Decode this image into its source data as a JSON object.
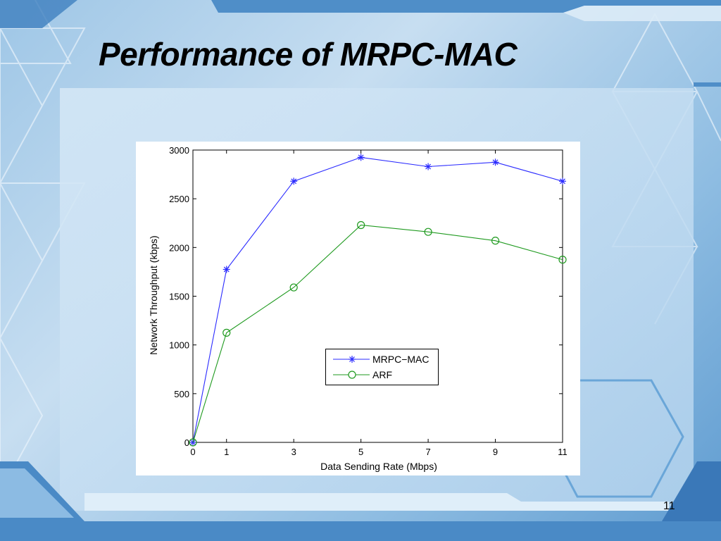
{
  "slide": {
    "title": "Performance of MRPC-MAC",
    "page_number": "11"
  },
  "colors": {
    "mrpc_mac": "#2b2bff",
    "arf": "#1f9a1f",
    "background_light": "#c7def1",
    "background_dark": "#5e9bd0"
  },
  "chart_data": {
    "type": "line",
    "xlabel": "Data Sending Rate (Mbps)",
    "ylabel": "Network Throughput (kbps)",
    "x": [
      0,
      1,
      3,
      5,
      7,
      9,
      11
    ],
    "xticks": [
      0,
      1,
      3,
      5,
      7,
      9,
      11
    ],
    "xlim": [
      0,
      11
    ],
    "ylim": [
      0,
      3000
    ],
    "yticks": [
      0,
      500,
      1000,
      1500,
      2000,
      2500,
      3000
    ],
    "grid": false,
    "legend_position": "center-right",
    "series": [
      {
        "name": "MRPC−MAC",
        "marker": "asterisk",
        "color": "#2b2bff",
        "values": [
          0,
          1775,
          2680,
          2925,
          2830,
          2875,
          2680
        ]
      },
      {
        "name": "ARF",
        "marker": "circle",
        "color": "#1f9a1f",
        "values": [
          0,
          1125,
          1590,
          2230,
          2160,
          2070,
          1875
        ]
      }
    ]
  }
}
